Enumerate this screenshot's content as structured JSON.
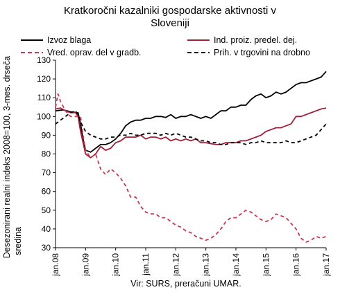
{
  "chart_data": {
    "type": "line",
    "title": "Kratkoročni kazalniki gospodarske aktivnosti v Sloveniji",
    "title_lines": [
      "Kratkoročni kazalniki gospodarske aktivnosti v",
      "Sloveniji"
    ],
    "ylabel": "Desezonirani realni indeks 2008=100, 3-mes. drseča sredina",
    "ylabel_lines": [
      "Desezonirani realni indeks 2008=100, 3-mes. drseča",
      "sredina"
    ],
    "xlabel": "",
    "source": "Vir: SURS, preračuni UMAR.",
    "ylim": [
      30,
      130
    ],
    "yticks": [
      30,
      40,
      50,
      60,
      70,
      80,
      90,
      100,
      110,
      120,
      130
    ],
    "xlim": [
      0,
      108
    ],
    "xticks": [
      {
        "pos": 0,
        "label": "jan.08"
      },
      {
        "pos": 12,
        "label": "jan.09"
      },
      {
        "pos": 24,
        "label": "jan.10"
      },
      {
        "pos": 36,
        "label": "jan.11"
      },
      {
        "pos": 48,
        "label": "jan.12"
      },
      {
        "pos": 60,
        "label": "jan.13"
      },
      {
        "pos": 72,
        "label": "jan.14"
      },
      {
        "pos": 84,
        "label": "jan.15"
      },
      {
        "pos": 96,
        "label": "jan.16"
      },
      {
        "pos": 108,
        "label": "jan.17"
      }
    ],
    "grid": false,
    "legend_position": "top",
    "series": [
      {
        "name": "Izvoz blaga",
        "color": "#000000",
        "dash": "solid",
        "points": [
          [
            0,
            103
          ],
          [
            3,
            103.5
          ],
          [
            6,
            102.5
          ],
          [
            9,
            102
          ],
          [
            10,
            96
          ],
          [
            11,
            88
          ],
          [
            12,
            82
          ],
          [
            14,
            81
          ],
          [
            16,
            83
          ],
          [
            18,
            85
          ],
          [
            20,
            85
          ],
          [
            22,
            86
          ],
          [
            24,
            88
          ],
          [
            26,
            91
          ],
          [
            28,
            95
          ],
          [
            30,
            97
          ],
          [
            32,
            98
          ],
          [
            34,
            98
          ],
          [
            36,
            99
          ],
          [
            38,
            99
          ],
          [
            40,
            100
          ],
          [
            42,
            100
          ],
          [
            44,
            99.5
          ],
          [
            46,
            101
          ],
          [
            48,
            99
          ],
          [
            50,
            100
          ],
          [
            52,
            100
          ],
          [
            54,
            101
          ],
          [
            56,
            100
          ],
          [
            58,
            99
          ],
          [
            60,
            100
          ],
          [
            62,
            99
          ],
          [
            64,
            101
          ],
          [
            66,
            103
          ],
          [
            68,
            103
          ],
          [
            70,
            105
          ],
          [
            72,
            105
          ],
          [
            74,
            106
          ],
          [
            76,
            106
          ],
          [
            78,
            109
          ],
          [
            80,
            111
          ],
          [
            82,
            112
          ],
          [
            84,
            110
          ],
          [
            86,
            111
          ],
          [
            88,
            113
          ],
          [
            90,
            112
          ],
          [
            92,
            113
          ],
          [
            94,
            115
          ],
          [
            96,
            117
          ],
          [
            98,
            118
          ],
          [
            100,
            118
          ],
          [
            102,
            119
          ],
          [
            104,
            120
          ],
          [
            106,
            121
          ],
          [
            108,
            124
          ]
        ]
      },
      {
        "name": "Ind. proiz. predel. dej.",
        "color": "#a0203a",
        "dash": "solid",
        "points": [
          [
            0,
            104
          ],
          [
            2,
            104.5
          ],
          [
            4,
            103
          ],
          [
            6,
            102
          ],
          [
            8,
            102
          ],
          [
            9,
            100
          ],
          [
            10,
            92
          ],
          [
            11,
            86
          ],
          [
            12,
            80
          ],
          [
            14,
            78
          ],
          [
            16,
            80
          ],
          [
            18,
            84
          ],
          [
            20,
            82
          ],
          [
            22,
            83
          ],
          [
            24,
            86
          ],
          [
            26,
            87
          ],
          [
            28,
            89
          ],
          [
            30,
            89
          ],
          [
            32,
            89
          ],
          [
            34,
            90
          ],
          [
            36,
            88
          ],
          [
            38,
            89
          ],
          [
            40,
            89
          ],
          [
            42,
            88
          ],
          [
            44,
            89
          ],
          [
            46,
            87
          ],
          [
            48,
            88
          ],
          [
            50,
            87
          ],
          [
            52,
            88
          ],
          [
            54,
            87
          ],
          [
            56,
            88
          ],
          [
            58,
            86
          ],
          [
            60,
            86
          ],
          [
            62,
            85.5
          ],
          [
            64,
            85
          ],
          [
            66,
            85
          ],
          [
            68,
            86
          ],
          [
            70,
            86
          ],
          [
            72,
            86
          ],
          [
            74,
            87
          ],
          [
            76,
            87
          ],
          [
            78,
            88
          ],
          [
            80,
            89
          ],
          [
            82,
            90
          ],
          [
            84,
            92
          ],
          [
            86,
            93
          ],
          [
            88,
            94
          ],
          [
            90,
            94
          ],
          [
            92,
            95
          ],
          [
            94,
            96
          ],
          [
            96,
            100
          ],
          [
            98,
            100
          ],
          [
            100,
            101
          ],
          [
            102,
            102
          ],
          [
            104,
            103
          ],
          [
            106,
            104
          ],
          [
            108,
            104.5
          ]
        ]
      },
      {
        "name": "Vred. oprav. del v gradb.",
        "color": "#c43a50",
        "dash": "dashed",
        "points": [
          [
            0,
            105
          ],
          [
            1,
            112
          ],
          [
            2,
            108
          ],
          [
            4,
            103
          ],
          [
            6,
            100
          ],
          [
            8,
            100
          ],
          [
            10,
            100
          ],
          [
            11,
            90
          ],
          [
            12,
            82
          ],
          [
            14,
            78
          ],
          [
            16,
            80
          ],
          [
            18,
            72
          ],
          [
            20,
            69
          ],
          [
            22,
            72
          ],
          [
            24,
            70
          ],
          [
            26,
            67
          ],
          [
            28,
            63
          ],
          [
            30,
            57
          ],
          [
            32,
            57
          ],
          [
            34,
            52
          ],
          [
            36,
            49
          ],
          [
            38,
            48
          ],
          [
            40,
            48
          ],
          [
            42,
            46
          ],
          [
            44,
            46
          ],
          [
            46,
            44
          ],
          [
            48,
            42
          ],
          [
            50,
            41
          ],
          [
            52,
            39
          ],
          [
            54,
            38
          ],
          [
            56,
            36
          ],
          [
            58,
            35
          ],
          [
            60,
            34
          ],
          [
            62,
            35
          ],
          [
            64,
            37
          ],
          [
            66,
            40
          ],
          [
            68,
            44
          ],
          [
            70,
            46
          ],
          [
            72,
            46
          ],
          [
            74,
            48
          ],
          [
            76,
            50
          ],
          [
            78,
            49
          ],
          [
            80,
            47
          ],
          [
            82,
            45
          ],
          [
            84,
            44
          ],
          [
            86,
            45
          ],
          [
            88,
            48
          ],
          [
            90,
            47
          ],
          [
            92,
            46
          ],
          [
            94,
            43
          ],
          [
            96,
            40
          ],
          [
            98,
            35
          ],
          [
            100,
            33
          ],
          [
            102,
            34
          ],
          [
            104,
            36
          ],
          [
            106,
            35
          ],
          [
            108,
            36
          ]
        ]
      },
      {
        "name": "Prih. v trgovini na drobno",
        "color": "#000000",
        "dash": "dashed",
        "points": [
          [
            0,
            96
          ],
          [
            2,
            98
          ],
          [
            4,
            100
          ],
          [
            6,
            102
          ],
          [
            8,
            103
          ],
          [
            9,
            101
          ],
          [
            10,
            97
          ],
          [
            12,
            92
          ],
          [
            14,
            90
          ],
          [
            16,
            89
          ],
          [
            18,
            88
          ],
          [
            20,
            88
          ],
          [
            22,
            89
          ],
          [
            24,
            89
          ],
          [
            26,
            90
          ],
          [
            28,
            90
          ],
          [
            30,
            91
          ],
          [
            32,
            90
          ],
          [
            34,
            90
          ],
          [
            36,
            91
          ],
          [
            38,
            91
          ],
          [
            40,
            91
          ],
          [
            42,
            90
          ],
          [
            44,
            91
          ],
          [
            46,
            90
          ],
          [
            48,
            91
          ],
          [
            50,
            90
          ],
          [
            52,
            89
          ],
          [
            54,
            89
          ],
          [
            56,
            88
          ],
          [
            58,
            87
          ],
          [
            60,
            87
          ],
          [
            62,
            86
          ],
          [
            64,
            86
          ],
          [
            66,
            85
          ],
          [
            68,
            85
          ],
          [
            70,
            86
          ],
          [
            72,
            86
          ],
          [
            74,
            86
          ],
          [
            76,
            85
          ],
          [
            78,
            86
          ],
          [
            80,
            86
          ],
          [
            82,
            87
          ],
          [
            84,
            86
          ],
          [
            86,
            86
          ],
          [
            88,
            86
          ],
          [
            90,
            86
          ],
          [
            92,
            87
          ],
          [
            94,
            86
          ],
          [
            96,
            86
          ],
          [
            98,
            87
          ],
          [
            100,
            88
          ],
          [
            102,
            89
          ],
          [
            104,
            90
          ],
          [
            106,
            93
          ],
          [
            108,
            96
          ]
        ]
      }
    ]
  }
}
